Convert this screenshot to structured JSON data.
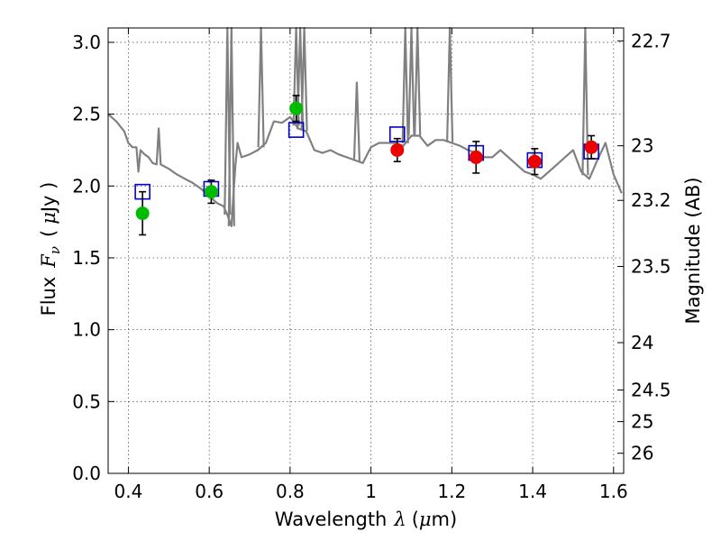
{
  "chart_data": {
    "type": "scatter",
    "title": "",
    "xlabel": {
      "text": "Wavelength",
      "symbol": "λ",
      "unit_open": "(",
      "unit_mu": "μ",
      "unit_rest": "m)"
    },
    "ylabel": {
      "text": "Flux",
      "symbol": "F",
      "sub": "ν",
      "unit_open": "(",
      "unit_mu": "μ",
      "unit_rest": "Jy )"
    },
    "y2label": "Magnitude (AB)",
    "xlim": [
      0.35,
      1.625
    ],
    "ylim": [
      0.0,
      3.1
    ],
    "grid": true,
    "legend": "none",
    "x_ticks": [
      0.4,
      0.6,
      0.8,
      1.0,
      1.2,
      1.4,
      1.6
    ],
    "x_tick_labels": [
      "0.4",
      "0.6",
      "0.8",
      "1",
      "1.2",
      "1.4",
      "1.6"
    ],
    "y_ticks": [
      0.0,
      0.5,
      1.0,
      1.5,
      2.0,
      2.5,
      3.0
    ],
    "y_tick_labels": [
      "0.0",
      "0.5",
      "1.0",
      "1.5",
      "2.0",
      "2.5",
      "3.0"
    ],
    "y2_ticks": [
      {
        "label": "22.7",
        "flux": 3.01
      },
      {
        "label": "23",
        "flux": 2.28
      },
      {
        "label": "23.2",
        "flux": 1.9
      },
      {
        "label": "23.5",
        "flux": 1.44
      },
      {
        "label": "24",
        "flux": 0.91
      },
      {
        "label": "24.5",
        "flux": 0.58
      },
      {
        "label": "25",
        "flux": 0.36
      },
      {
        "label": "26",
        "flux": 0.14
      }
    ],
    "colors": {
      "model": "#808080",
      "optical": "#00bb00",
      "nir": "#ee0000",
      "model_band": "#0000cc",
      "errorbar": "#000000"
    },
    "series": [
      {
        "kind": "line",
        "x": [
          0.35,
          0.37,
          0.39,
          0.4,
          0.41,
          0.42,
          0.425,
          0.43,
          0.44,
          0.45,
          0.46,
          0.47,
          0.475,
          0.48,
          0.5,
          0.52,
          0.54,
          0.56,
          0.58,
          0.6,
          0.62,
          0.635,
          0.645,
          0.655,
          0.66,
          0.665,
          0.67,
          0.68,
          0.7,
          0.72,
          0.74,
          0.76,
          0.78,
          0.8,
          0.82,
          0.84,
          0.86,
          0.88,
          0.9,
          0.92,
          0.94,
          0.96,
          0.98,
          1.0,
          1.02,
          1.04,
          1.06,
          1.08,
          1.1,
          1.12,
          1.14,
          1.16,
          1.18,
          1.2,
          1.22,
          1.24,
          1.26,
          1.28,
          1.3,
          1.32,
          1.34,
          1.36,
          1.38,
          1.4,
          1.42,
          1.44,
          1.46,
          1.48,
          1.5,
          1.52,
          1.54,
          1.56,
          1.58,
          1.6,
          1.62
        ],
        "y": [
          2.5,
          2.45,
          2.38,
          2.3,
          2.27,
          2.27,
          2.1,
          2.25,
          2.22,
          2.2,
          2.16,
          2.15,
          2.4,
          2.15,
          2.12,
          2.08,
          2.05,
          2.02,
          1.98,
          1.93,
          1.88,
          1.86,
          1.8,
          1.72,
          1.95,
          2.15,
          2.3,
          2.2,
          2.22,
          2.25,
          2.3,
          2.45,
          2.44,
          2.48,
          2.4,
          2.38,
          2.25,
          2.23,
          2.25,
          2.22,
          2.2,
          2.18,
          2.16,
          2.27,
          2.3,
          2.3,
          2.3,
          2.28,
          2.35,
          2.35,
          2.28,
          2.32,
          2.32,
          2.3,
          2.28,
          2.25,
          2.23,
          2.2,
          2.2,
          2.25,
          2.2,
          2.15,
          2.1,
          2.08,
          2.05,
          2.1,
          2.15,
          2.2,
          2.25,
          2.1,
          2.05,
          2.18,
          2.3,
          2.08,
          1.95
        ]
      },
      {
        "kind": "model-photometry",
        "x": [
          0.435,
          0.605,
          0.815,
          1.065,
          1.26,
          1.405,
          1.545
        ],
        "y": [
          1.96,
          1.98,
          2.39,
          2.36,
          2.23,
          2.18,
          2.24
        ]
      },
      {
        "kind": "observed-optical",
        "x": [
          0.435,
          0.605,
          0.815
        ],
        "y": [
          1.81,
          1.96,
          2.54
        ],
        "err": [
          0.15,
          0.08,
          0.09
        ]
      },
      {
        "kind": "observed-nir",
        "x": [
          1.065,
          1.26,
          1.405,
          1.545
        ],
        "y": [
          2.25,
          2.2,
          2.17,
          2.27
        ],
        "err": [
          0.08,
          0.11,
          0.09,
          0.08
        ]
      }
    ],
    "emission_lines": [
      {
        "x": 0.645,
        "top": 3.2
      },
      {
        "x": 0.655,
        "top": 3.2
      },
      {
        "x": 0.728,
        "top": 3.2
      },
      {
        "x": 0.815,
        "top": 3.2
      },
      {
        "x": 0.825,
        "top": 3.2
      },
      {
        "x": 0.835,
        "top": 3.2
      },
      {
        "x": 0.965,
        "top": 2.72
      },
      {
        "x": 1.085,
        "top": 3.2
      },
      {
        "x": 1.1,
        "top": 3.2
      },
      {
        "x": 1.115,
        "top": 3.2
      },
      {
        "x": 1.195,
        "top": 3.2
      },
      {
        "x": 1.53,
        "top": 3.2
      }
    ]
  }
}
